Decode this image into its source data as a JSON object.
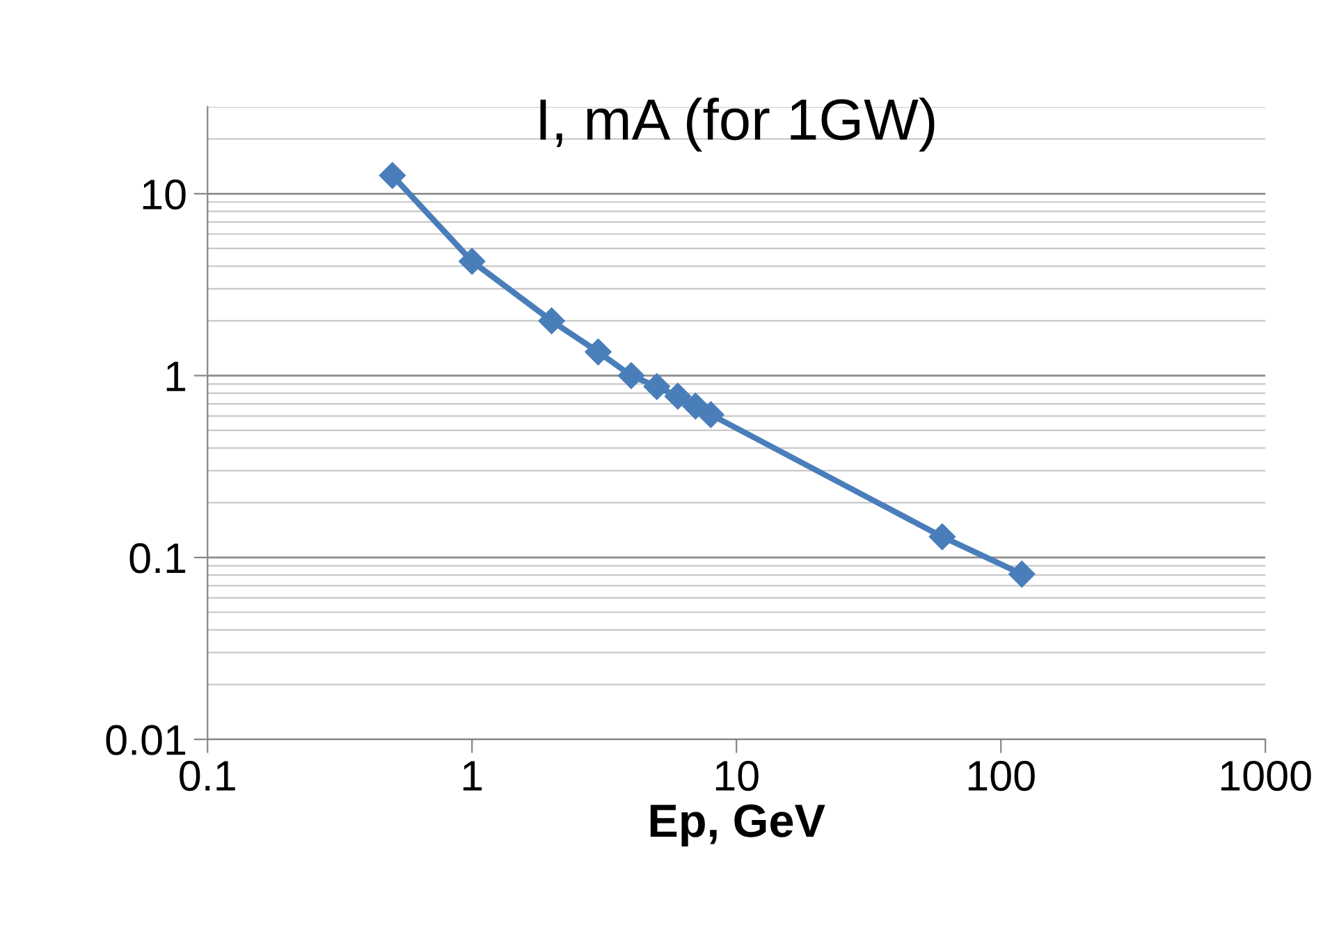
{
  "chart_data": {
    "type": "line",
    "title": "I, mA (for 1GW)",
    "xlabel": "Ep, GeV",
    "x": [
      0.5,
      1,
      2,
      3,
      4,
      5,
      6,
      7,
      8,
      60,
      120
    ],
    "series": [
      {
        "color": "#4a7ebb",
        "values": [
          12.6,
          4.25,
          2.0,
          1.35,
          1.0,
          0.87,
          0.77,
          0.68,
          0.61,
          0.13,
          0.081
        ]
      }
    ],
    "log": "xy",
    "xlim": [
      0.1,
      1000
    ],
    "xticks": [
      0.1,
      1,
      10,
      100,
      1000
    ],
    "ylim": [
      0.01,
      30
    ],
    "yticks": [
      0.01,
      0.1,
      1,
      10
    ],
    "grid": "y",
    "marker": "diamond",
    "line_style": "solid",
    "legend": false
  }
}
